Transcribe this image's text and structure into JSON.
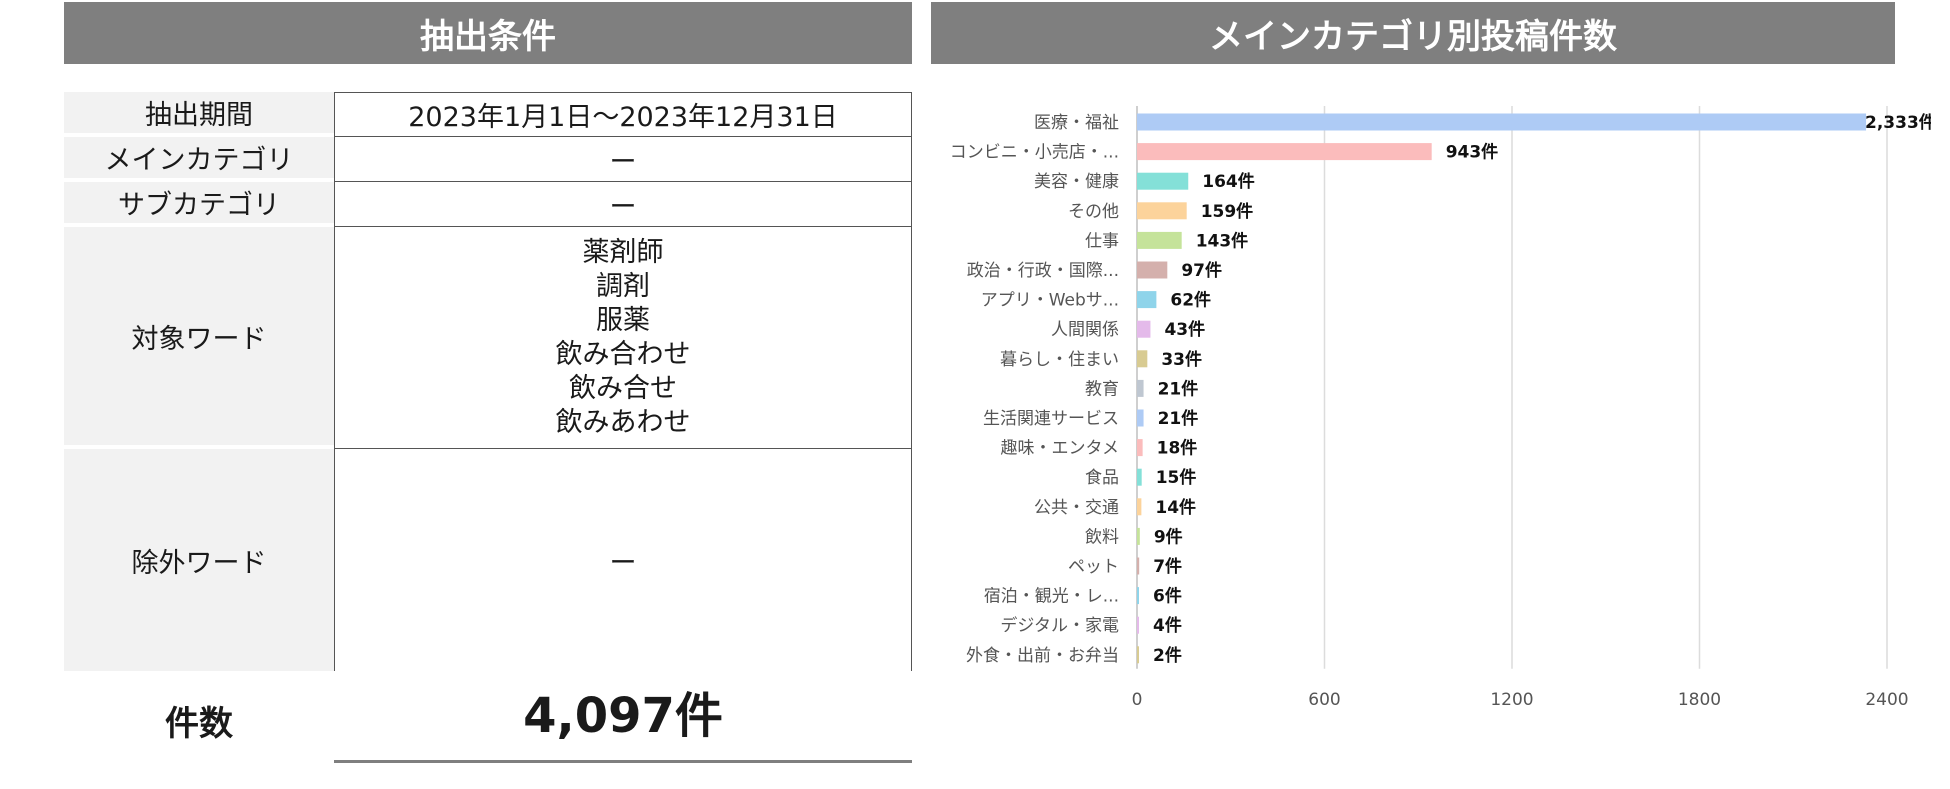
{
  "left_panel": {
    "title": "抽出条件",
    "rows": [
      {
        "label": "抽出期間",
        "values": [
          "2023年1月1日～2023年12月31日"
        ]
      },
      {
        "label": "メインカテゴリ",
        "values": [
          "ー"
        ]
      },
      {
        "label": "サブカテゴリ",
        "values": [
          "ー"
        ]
      },
      {
        "label": "対象ワード",
        "values": [
          "薬剤師",
          "調剤",
          "服薬",
          "飲み合わせ",
          "飲み合せ",
          "飲みあわせ"
        ]
      },
      {
        "label": "除外ワード",
        "values": [
          "ー"
        ]
      }
    ],
    "count_label": "件数",
    "count_value": "4,097件"
  },
  "chart_data": {
    "type": "bar",
    "orientation": "horizontal",
    "title": "メインカテゴリ別投稿件数",
    "categories": [
      "医療・福祉",
      "コンビニ・小売店・...",
      "美容・健康",
      "その他",
      "仕事",
      "政治・行政・国際...",
      "アプリ・Webサ...",
      "人間関係",
      "暮らし・住まい",
      "教育",
      "生活関連サービス",
      "趣味・エンタメ",
      "食品",
      "公共・交通",
      "飲料",
      "ペット",
      "宿泊・観光・レ...",
      "デジタル・家電",
      "外食・出前・お弁当"
    ],
    "values": [
      2333,
      943,
      164,
      159,
      143,
      97,
      62,
      43,
      33,
      21,
      21,
      18,
      15,
      14,
      9,
      7,
      6,
      4,
      2
    ],
    "data_labels": [
      "2,333件",
      "943件",
      "164件",
      "159件",
      "143件",
      "97件",
      "62件",
      "43件",
      "33件",
      "21件",
      "21件",
      "18件",
      "15件",
      "14件",
      "9件",
      "7件",
      "6件",
      "4件",
      "2件"
    ],
    "bar_colors": [
      "#aecbf5",
      "#fbbcbc",
      "#84e0d8",
      "#fcd39b",
      "#c5e39a",
      "#d4b0ac",
      "#8fd4ea",
      "#e4baea",
      "#d8cb92",
      "#bfc7d1",
      "#aecbf5",
      "#fbbcbc",
      "#84e0d8",
      "#fcd39b",
      "#c5e39a",
      "#d4b0ac",
      "#8fd4ea",
      "#e4baea",
      "#d8cb92"
    ],
    "xlim": [
      0,
      2400
    ],
    "xticks": [
      "0",
      "600",
      "1200",
      "1800",
      "2400"
    ],
    "xtick_values": [
      0,
      600,
      1200,
      1800,
      2400
    ],
    "grid": "vertical",
    "xlabel": "",
    "ylabel": ""
  },
  "colors": {
    "header_bg": "#7f7f7f",
    "label_bg": "#f2f2f2",
    "grid": "#dcdcdc"
  }
}
